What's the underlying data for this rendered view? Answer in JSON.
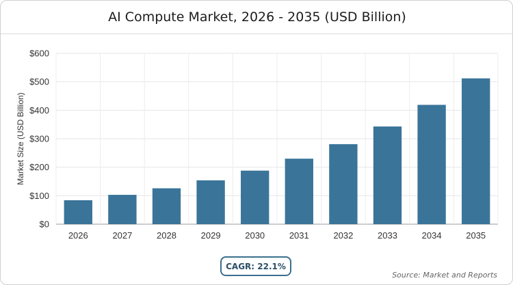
{
  "chart_data": {
    "type": "bar",
    "title": "AI Compute Market, 2026 - 2035 (USD Billion)",
    "ylabel": "Market Size (USD Billion)",
    "xlabel": "",
    "categories": [
      "2026",
      "2027",
      "2028",
      "2029",
      "2030",
      "2031",
      "2032",
      "2033",
      "2034",
      "2035"
    ],
    "values": [
      84,
      103,
      126,
      154,
      188,
      230,
      281,
      343,
      419,
      512
    ],
    "ylim": [
      0,
      600
    ],
    "yticks": [
      0,
      100,
      200,
      300,
      400,
      500,
      600
    ],
    "ytick_labels": [
      "$0",
      "$100",
      "$200",
      "$300",
      "$400",
      "$500",
      "$600"
    ],
    "grid": true,
    "bar_color": "#3a7499"
  },
  "footer": {
    "cagr": "CAGR: 22.1%",
    "source": "Source: Market and Reports"
  }
}
